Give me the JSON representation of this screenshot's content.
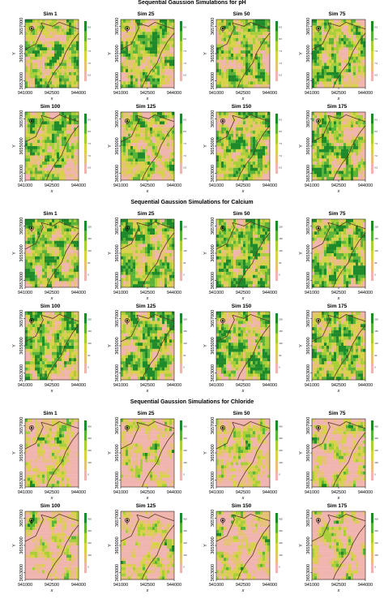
{
  "chart_data": [
    {
      "type": "heatmap",
      "title": "Sequential Gaussion Simulations for pH",
      "variable": "pH",
      "colors": [
        "#f1b5b0",
        "#e7c07a",
        "#d8d24a",
        "#a8cf3a",
        "#5cb33a",
        "#1e8a2a"
      ],
      "colorbar_ticks": [
        "8.5",
        "8.0",
        "7.5",
        "7.0",
        "6.5"
      ],
      "xlabel": "x",
      "ylabel": "Y",
      "x_ticks": [
        "941000",
        "942500",
        "944000"
      ],
      "y_ticks": [
        "3657000",
        "3655000",
        "3653000"
      ],
      "panels": [
        "Sim 1",
        "Sim 25",
        "Sim 50",
        "Sim 75",
        "Sim 100",
        "Sim 125",
        "Sim 150",
        "Sim 175"
      ]
    },
    {
      "type": "heatmap",
      "title": "Sequential Gaussion Simulations for Calcium",
      "variable": "Calcium",
      "colors": [
        "#f1b5b0",
        "#e7c07a",
        "#d8d24a",
        "#a8cf3a",
        "#5cb33a",
        "#1e8a2a"
      ],
      "colorbar_ticks": [
        "200",
        "150",
        "100",
        "50",
        "0"
      ],
      "xlabel": "x",
      "ylabel": "Y",
      "x_ticks": [
        "941000",
        "942500",
        "944000"
      ],
      "y_ticks": [
        "3657000",
        "3655000",
        "3653000"
      ],
      "panels": [
        "Sim 1",
        "Sim 25",
        "Sim 50",
        "Sim 75",
        "Sim 100",
        "Sim 125",
        "Sim 150",
        "Sim 175"
      ]
    },
    {
      "type": "heatmap",
      "title": "Sequential Gaussion Simulations for Chloride",
      "variable": "Chloride",
      "colors": [
        "#f1b5b0",
        "#e7c07a",
        "#d8d24a",
        "#a8cf3a",
        "#5cb33a",
        "#1e8a2a"
      ],
      "colorbar_ticks": [
        "400",
        "300",
        "200",
        "100",
        "0"
      ],
      "xlabel": "x",
      "ylabel": "Y",
      "x_ticks": [
        "941000",
        "942500",
        "944000"
      ],
      "y_ticks": [
        "3657000",
        "3655000",
        "3653000"
      ],
      "panels": [
        "Sim 1",
        "Sim 25",
        "Sim 50",
        "Sim 75",
        "Sim 100",
        "Sim 125",
        "Sim 150",
        "Sim 175"
      ]
    }
  ]
}
